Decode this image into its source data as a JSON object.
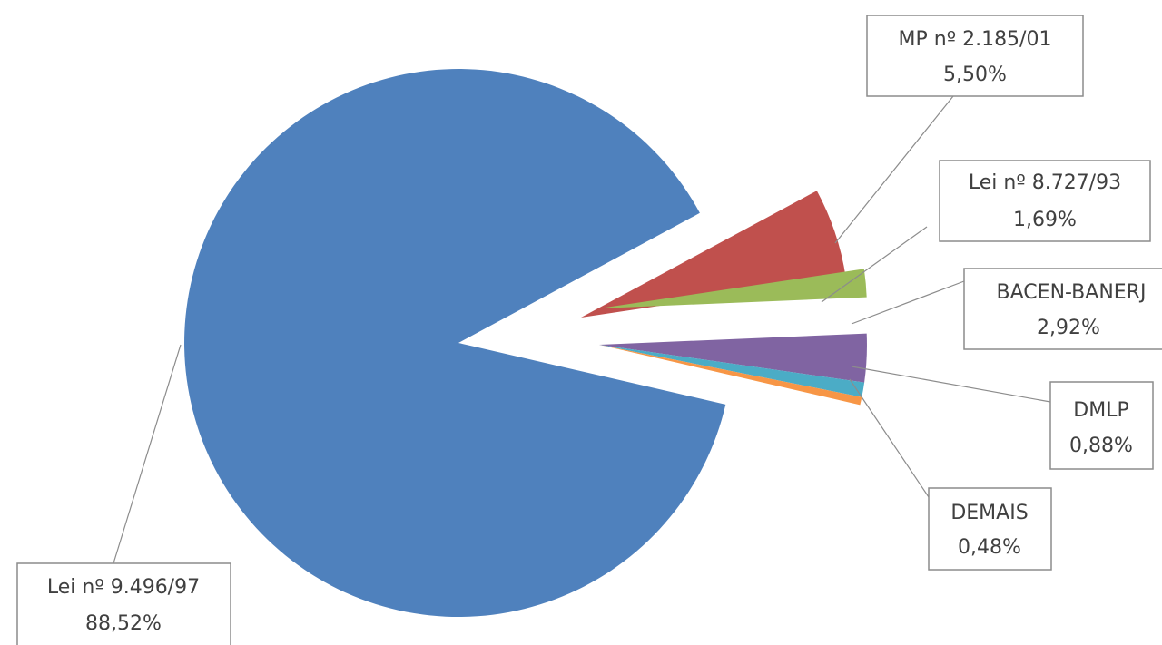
{
  "chart_data": {
    "type": "pie",
    "title": "",
    "exploded": true,
    "slices": [
      {
        "label": "Lei nº 9.496/97",
        "value": 88.52,
        "value_label": "88,52%",
        "color": "#4f81bd"
      },
      {
        "label": "MP nº 2.185/01",
        "value": 5.5,
        "value_label": "5,50%",
        "color": "#c0504d"
      },
      {
        "label": "Lei nº 8.727/93",
        "value": 1.69,
        "value_label": "1,69%",
        "color": "#9bbb59"
      },
      {
        "label": "BACEN-BANERJ",
        "value": 2.92,
        "value_label": "2,92%",
        "color": "#8064a2"
      },
      {
        "label": "DMLP",
        "value": 0.88,
        "value_label": "0,88%",
        "color": "#4bacc6"
      },
      {
        "label": "DEMAIS",
        "value": 0.48,
        "value_label": "0,48%",
        "color": "#f79646"
      }
    ]
  }
}
